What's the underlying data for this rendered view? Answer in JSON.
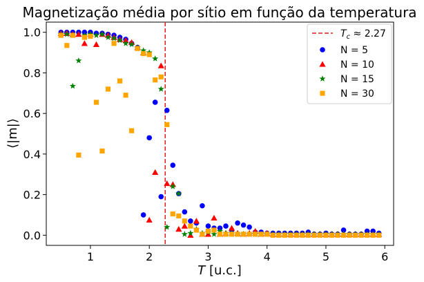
{
  "chart_data": {
    "type": "scatter",
    "title": "Magnetização média por sítio em função da temperatura",
    "xlabel": "T [u.c.]",
    "ylabel": "⟨|m|⟩",
    "xlim": [
      0.25,
      6.15
    ],
    "ylim": [
      -0.05,
      1.05
    ],
    "xticks": [
      1,
      2,
      3,
      4,
      5,
      6
    ],
    "yticks": [
      0.0,
      0.2,
      0.4,
      0.6,
      0.8,
      1.0
    ],
    "grid": false,
    "legend_position": "top-right",
    "vline": {
      "x": 2.27,
      "label": "T_c ≈ 2.27",
      "color": "#e41a1c",
      "style": "dashed"
    },
    "series": [
      {
        "name": "N = 5",
        "marker": "circle",
        "color": "#0000ff",
        "points": [
          [
            0.5,
            1.0
          ],
          [
            0.6,
            1.0
          ],
          [
            0.7,
            1.0
          ],
          [
            0.8,
            1.0
          ],
          [
            0.9,
            1.0
          ],
          [
            1.0,
            1.0
          ],
          [
            1.1,
            0.995
          ],
          [
            1.2,
            0.995
          ],
          [
            1.3,
            0.99
          ],
          [
            1.4,
            0.985
          ],
          [
            1.5,
            0.975
          ],
          [
            1.6,
            0.965
          ],
          [
            1.7,
            0.945
          ],
          [
            1.8,
            0.925
          ],
          [
            1.9,
            0.1
          ],
          [
            2.0,
            0.48
          ],
          [
            2.1,
            0.655
          ],
          [
            2.2,
            0.19
          ],
          [
            2.3,
            0.615
          ],
          [
            2.4,
            0.345
          ],
          [
            2.5,
            0.205
          ],
          [
            2.6,
            0.115
          ],
          [
            2.7,
            0.07
          ],
          [
            2.8,
            0.06
          ],
          [
            2.9,
            0.145
          ],
          [
            3.0,
            0.045
          ],
          [
            3.1,
            0.035
          ],
          [
            3.2,
            0.035
          ],
          [
            3.3,
            0.045
          ],
          [
            3.4,
            0.025
          ],
          [
            3.5,
            0.06
          ],
          [
            3.6,
            0.05
          ],
          [
            3.7,
            0.04
          ],
          [
            3.8,
            0.015
          ],
          [
            3.9,
            0.015
          ],
          [
            4.0,
            0.01
          ],
          [
            4.1,
            0.01
          ],
          [
            4.2,
            0.01
          ],
          [
            4.3,
            0.01
          ],
          [
            4.4,
            0.01
          ],
          [
            4.5,
            0.01
          ],
          [
            4.6,
            0.01
          ],
          [
            4.7,
            0.015
          ],
          [
            4.8,
            0.005
          ],
          [
            4.9,
            0.005
          ],
          [
            5.0,
            0.01
          ],
          [
            5.1,
            0.005
          ],
          [
            5.2,
            0.005
          ],
          [
            5.3,
            0.025
          ],
          [
            5.4,
            0.005
          ],
          [
            5.5,
            0.005
          ],
          [
            5.6,
            0.005
          ],
          [
            5.7,
            0.02
          ],
          [
            5.8,
            0.02
          ],
          [
            5.9,
            0.01
          ]
        ]
      },
      {
        "name": "N = 10",
        "marker": "triangle",
        "color": "#ff0000",
        "points": [
          [
            0.5,
            0.995
          ],
          [
            0.6,
            0.995
          ],
          [
            0.7,
            0.99
          ],
          [
            0.8,
            0.99
          ],
          [
            0.9,
            0.945
          ],
          [
            1.0,
            0.99
          ],
          [
            1.1,
            0.94
          ],
          [
            1.2,
            0.99
          ],
          [
            1.3,
            0.985
          ],
          [
            1.4,
            0.975
          ],
          [
            1.5,
            0.965
          ],
          [
            1.6,
            0.96
          ],
          [
            1.7,
            0.95
          ],
          [
            1.8,
            0.925
          ],
          [
            1.9,
            0.9
          ],
          [
            2.0,
            0.075
          ],
          [
            2.1,
            0.31
          ],
          [
            2.2,
            0.835
          ],
          [
            2.3,
            0.255
          ],
          [
            2.4,
            0.25
          ],
          [
            2.5,
            0.03
          ],
          [
            2.6,
            0.045
          ],
          [
            2.7,
            0.0
          ],
          [
            2.8,
            0.07
          ],
          [
            2.9,
            0.005
          ],
          [
            3.0,
            0.005
          ],
          [
            3.1,
            0.085
          ],
          [
            3.2,
            0.005
          ],
          [
            3.3,
            0.01
          ],
          [
            3.4,
            0.035
          ],
          [
            3.5,
            0.01
          ],
          [
            3.6,
            0.005
          ],
          [
            3.7,
            0.01
          ],
          [
            3.8,
            0.02
          ],
          [
            3.9,
            0.005
          ],
          [
            4.0,
            0.01
          ],
          [
            4.1,
            0.005
          ],
          [
            4.2,
            0.005
          ],
          [
            4.3,
            0.005
          ],
          [
            4.4,
            0.005
          ],
          [
            4.5,
            0.005
          ],
          [
            4.6,
            0.005
          ],
          [
            4.7,
            0.005
          ],
          [
            4.8,
            0.005
          ],
          [
            4.9,
            0.005
          ],
          [
            5.0,
            0.005
          ],
          [
            5.1,
            0.005
          ],
          [
            5.2,
            0.005
          ],
          [
            5.3,
            0.005
          ],
          [
            5.4,
            0.005
          ],
          [
            5.5,
            0.005
          ],
          [
            5.6,
            0.005
          ],
          [
            5.7,
            0.005
          ],
          [
            5.8,
            0.005
          ],
          [
            5.9,
            0.005
          ]
        ]
      },
      {
        "name": "N = 15",
        "marker": "star",
        "color": "#008000",
        "points": [
          [
            0.5,
            0.99
          ],
          [
            0.6,
            0.99
          ],
          [
            0.7,
            0.735
          ],
          [
            0.8,
            0.86
          ],
          [
            0.9,
            0.985
          ],
          [
            1.0,
            0.99
          ],
          [
            1.1,
            0.985
          ],
          [
            1.2,
            0.99
          ],
          [
            1.3,
            0.975
          ],
          [
            1.4,
            0.97
          ],
          [
            1.5,
            0.96
          ],
          [
            1.6,
            0.945
          ],
          [
            1.7,
            0.94
          ],
          [
            1.8,
            0.925
          ],
          [
            1.9,
            0.91
          ],
          [
            2.0,
            0.9
          ],
          [
            2.1,
            0.87
          ],
          [
            2.2,
            0.72
          ],
          [
            2.3,
            0.04
          ],
          [
            2.4,
            0.24
          ],
          [
            2.5,
            0.205
          ],
          [
            2.6,
            0.005
          ],
          [
            2.7,
            0.01
          ],
          [
            2.8,
            0.03
          ],
          [
            2.9,
            0.01
          ],
          [
            3.0,
            0.015
          ],
          [
            3.1,
            0.005
          ],
          [
            3.2,
            0.02
          ],
          [
            3.3,
            0.01
          ],
          [
            3.4,
            0.01
          ],
          [
            3.5,
            0.005
          ],
          [
            3.6,
            0.005
          ],
          [
            3.7,
            0.005
          ],
          [
            3.8,
            0.005
          ],
          [
            3.9,
            0.005
          ],
          [
            4.0,
            0.005
          ],
          [
            4.1,
            0.005
          ],
          [
            4.2,
            0.005
          ],
          [
            4.3,
            0.005
          ],
          [
            4.4,
            0.005
          ],
          [
            4.5,
            0.005
          ],
          [
            4.6,
            0.005
          ],
          [
            4.7,
            0.005
          ],
          [
            4.8,
            0.005
          ],
          [
            4.9,
            0.005
          ],
          [
            5.0,
            0.005
          ],
          [
            5.1,
            0.005
          ],
          [
            5.2,
            0.005
          ],
          [
            5.3,
            0.005
          ],
          [
            5.4,
            0.005
          ],
          [
            5.5,
            0.005
          ],
          [
            5.6,
            0.005
          ],
          [
            5.7,
            0.005
          ],
          [
            5.8,
            0.005
          ],
          [
            5.9,
            0.005
          ]
        ]
      },
      {
        "name": "N = 30",
        "marker": "square",
        "color": "#ffa500",
        "points": [
          [
            0.5,
            0.985
          ],
          [
            0.6,
            0.935
          ],
          [
            0.7,
            0.985
          ],
          [
            0.8,
            0.395
          ],
          [
            0.9,
            0.975
          ],
          [
            1.0,
            0.98
          ],
          [
            1.1,
            0.655
          ],
          [
            1.2,
            0.415
          ],
          [
            1.3,
            0.72
          ],
          [
            1.4,
            0.945
          ],
          [
            1.5,
            0.76
          ],
          [
            1.6,
            0.69
          ],
          [
            1.7,
            0.515
          ],
          [
            1.8,
            0.92
          ],
          [
            1.9,
            0.895
          ],
          [
            2.0,
            0.89
          ],
          [
            2.1,
            0.765
          ],
          [
            2.2,
            0.78
          ],
          [
            2.3,
            0.545
          ],
          [
            2.4,
            0.105
          ],
          [
            2.5,
            0.095
          ],
          [
            2.6,
            0.07
          ],
          [
            2.7,
            0.045
          ],
          [
            2.8,
            0.025
          ],
          [
            2.9,
            0.005
          ],
          [
            3.0,
            0.02
          ],
          [
            3.1,
            0.025
          ],
          [
            3.2,
            0.005
          ],
          [
            3.3,
            0.005
          ],
          [
            3.4,
            0.005
          ],
          [
            3.5,
            0.005
          ],
          [
            3.6,
            0.005
          ],
          [
            3.7,
            0.005
          ],
          [
            3.8,
            0.005
          ],
          [
            3.9,
            0.005
          ],
          [
            4.0,
            0.005
          ],
          [
            4.1,
            0.0
          ],
          [
            4.2,
            0.0
          ],
          [
            4.3,
            0.0
          ],
          [
            4.4,
            0.0
          ],
          [
            4.5,
            0.0
          ],
          [
            4.6,
            0.0
          ],
          [
            4.7,
            0.0
          ],
          [
            4.8,
            0.0
          ],
          [
            4.9,
            0.0
          ],
          [
            5.0,
            0.0
          ],
          [
            5.1,
            0.0
          ],
          [
            5.2,
            0.0
          ],
          [
            5.3,
            0.0
          ],
          [
            5.4,
            0.0
          ],
          [
            5.5,
            0.0
          ],
          [
            5.6,
            0.0
          ],
          [
            5.7,
            0.0
          ],
          [
            5.8,
            0.0
          ],
          [
            5.9,
            0.0
          ]
        ]
      }
    ]
  }
}
